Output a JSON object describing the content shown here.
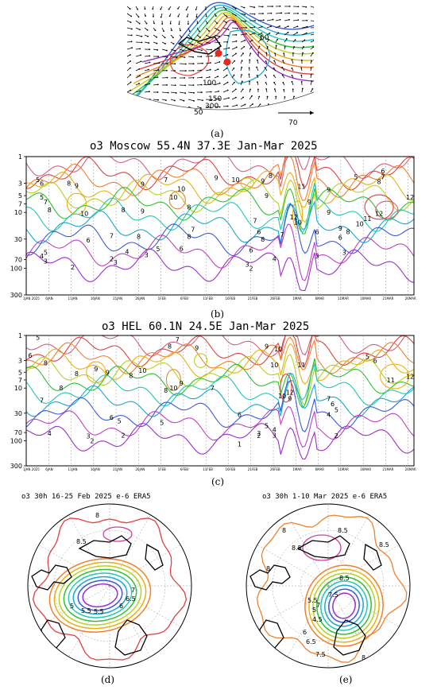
{
  "panel_a": {
    "label": "(a)",
    "contour_labels": [
      "60",
      "100",
      "150",
      "300",
      "50"
    ],
    "arrow_scale_label": "70"
  },
  "panel_b": {
    "label": "(b)",
    "title": "o3 Moscow 55.4N 37.3E Jan-Mar 2025"
  },
  "panel_c": {
    "label": "(c)",
    "title": "o3 HEL 60.1N 24.5E Jan-Mar 2025"
  },
  "panel_d": {
    "label": "(d)",
    "title": "o3 30h 16-25 Feb 2025 e-6 ERA5"
  },
  "panel_e": {
    "label": "(e)",
    "title": "o3 30h 1-10 Mar 2025 e-6 ERA5"
  },
  "colors": {
    "contours": [
      "#9b30c8",
      "#c040c0",
      "#3a5ad8",
      "#18a8d0",
      "#20c8b8",
      "#30c030",
      "#b8d020",
      "#e8b010",
      "#f08030",
      "#e04040",
      "#d06080"
    ]
  },
  "chart_data": [
    {
      "type": "heatmap",
      "title": "o3 Moscow 55.4N 37.3E Jan-Mar 2025",
      "y_ticks": [
        "1",
        "3",
        "5",
        "7",
        "10",
        "30",
        "70",
        "100",
        "300"
      ],
      "y_scale": "log-pressure",
      "x_ticks": [
        "1JAN 2025",
        "6JAN",
        "11JAN",
        "16JAN",
        "21JAN",
        "26JAN",
        "1FEB",
        "6FEB",
        "11FEB",
        "16FEB",
        "21FEB",
        "26FEB",
        "1MAR",
        "6MAR",
        "11MAR",
        "16MAR",
        "21MAR",
        "26MAR"
      ],
      "contour_labels": [
        {
          "t": "5",
          "x": 0.03,
          "p": 2.6
        },
        {
          "t": "6",
          "x": 0.04,
          "p": 3.0
        },
        {
          "t": "8",
          "x": 0.11,
          "p": 3.0
        },
        {
          "t": "9",
          "x": 0.13,
          "p": 3.3
        },
        {
          "t": "7",
          "x": 0.36,
          "p": 2.6
        },
        {
          "t": "9",
          "x": 0.3,
          "p": 3.1
        },
        {
          "t": "9",
          "x": 0.49,
          "p": 2.4
        },
        {
          "t": "10",
          "x": 0.54,
          "p": 2.6
        },
        {
          "t": "8",
          "x": 0.63,
          "p": 2.2
        },
        {
          "t": "9",
          "x": 0.61,
          "p": 2.7
        },
        {
          "t": "10",
          "x": 0.4,
          "p": 3.8
        },
        {
          "t": "10",
          "x": 0.38,
          "p": 5.3
        },
        {
          "t": "11",
          "x": 0.71,
          "p": 3.4
        },
        {
          "t": "9",
          "x": 0.78,
          "p": 3.9
        },
        {
          "t": "5",
          "x": 0.85,
          "p": 2.3
        },
        {
          "t": "6",
          "x": 0.92,
          "p": 1.8
        },
        {
          "t": "7",
          "x": 0.92,
          "p": 2.3
        },
        {
          "t": "8",
          "x": 0.91,
          "p": 2.8
        },
        {
          "t": "12",
          "x": 0.99,
          "p": 5.3
        },
        {
          "t": "5",
          "x": 0.04,
          "p": 5.3
        },
        {
          "t": "7",
          "x": 0.05,
          "p": 6.5
        },
        {
          "t": "8",
          "x": 0.06,
          "p": 9.0
        },
        {
          "t": "10",
          "x": 0.15,
          "p": 10.5
        },
        {
          "t": "8",
          "x": 0.25,
          "p": 9.0
        },
        {
          "t": "9",
          "x": 0.3,
          "p": 9.5
        },
        {
          "t": "8",
          "x": 0.42,
          "p": 8.0
        },
        {
          "t": "9",
          "x": 0.62,
          "p": 5.0
        },
        {
          "t": "9",
          "x": 0.73,
          "p": 6.5
        },
        {
          "t": "12",
          "x": 0.69,
          "p": 12.0
        },
        {
          "t": "10",
          "x": 0.7,
          "p": 15.0
        },
        {
          "t": "9",
          "x": 0.78,
          "p": 10.0
        },
        {
          "t": "12",
          "x": 0.91,
          "p": 10.5
        },
        {
          "t": "11",
          "x": 0.88,
          "p": 13.0
        },
        {
          "t": "10",
          "x": 0.86,
          "p": 16.0
        },
        {
          "t": "9",
          "x": 0.81,
          "p": 19.0
        },
        {
          "t": "8",
          "x": 0.83,
          "p": 22.0
        },
        {
          "t": "7",
          "x": 0.59,
          "p": 14.0
        },
        {
          "t": "7",
          "x": 0.43,
          "p": 20.0
        },
        {
          "t": "8",
          "x": 0.42,
          "p": 27.0
        },
        {
          "t": "6",
          "x": 0.6,
          "p": 22.0
        },
        {
          "t": "7",
          "x": 0.22,
          "p": 26.0
        },
        {
          "t": "6",
          "x": 0.16,
          "p": 31.0
        },
        {
          "t": "8",
          "x": 0.29,
          "p": 27.0
        },
        {
          "t": "8",
          "x": 0.61,
          "p": 30.0
        },
        {
          "t": "7",
          "x": 0.66,
          "p": 25.0
        },
        {
          "t": "6",
          "x": 0.75,
          "p": 22.0
        },
        {
          "t": "6",
          "x": 0.81,
          "p": 28.0
        },
        {
          "t": "5",
          "x": 0.34,
          "p": 45.0
        },
        {
          "t": "6",
          "x": 0.4,
          "p": 44.0
        },
        {
          "t": "6",
          "x": 0.58,
          "p": 47.0
        },
        {
          "t": "4",
          "x": 0.26,
          "p": 50.0
        },
        {
          "t": "3",
          "x": 0.31,
          "p": 57.0
        },
        {
          "t": "5",
          "x": 0.05,
          "p": 52.0
        },
        {
          "t": "4",
          "x": 0.04,
          "p": 60.0
        },
        {
          "t": "3",
          "x": 0.05,
          "p": 75.0
        },
        {
          "t": "2",
          "x": 0.12,
          "p": 95.0
        },
        {
          "t": "3",
          "x": 0.23,
          "p": 78.0
        },
        {
          "t": "2",
          "x": 0.22,
          "p": 68.0
        },
        {
          "t": "4",
          "x": 0.64,
          "p": 68.0
        },
        {
          "t": "3",
          "x": 0.57,
          "p": 85.0
        },
        {
          "t": "2",
          "x": 0.58,
          "p": 100.0
        },
        {
          "t": "3",
          "x": 0.75,
          "p": 60.0
        },
        {
          "t": "3",
          "x": 0.82,
          "p": 52.0
        }
      ]
    },
    {
      "type": "heatmap",
      "title": "o3 HEL 60.1N 24.5E Jan-Mar 2025",
      "y_ticks": [
        "1",
        "3",
        "5",
        "7",
        "10",
        "30",
        "70",
        "100",
        "300"
      ],
      "y_scale": "log-pressure",
      "x_ticks": [
        "1JAN 2025",
        "6JAN",
        "11JAN",
        "16JAN",
        "21JAN",
        "26JAN",
        "1FEB",
        "6FEB",
        "11FEB",
        "16FEB",
        "21FEB",
        "26FEB",
        "1MAR",
        "6MAR",
        "11MAR",
        "16MAR",
        "21MAR",
        "26MAR"
      ],
      "contour_labels": [
        {
          "t": "5",
          "x": 0.03,
          "p": 1.1
        },
        {
          "t": "7",
          "x": 0.39,
          "p": 1.2
        },
        {
          "t": "8",
          "x": 0.37,
          "p": 1.6
        },
        {
          "t": "9",
          "x": 0.44,
          "p": 1.7
        },
        {
          "t": "9",
          "x": 0.62,
          "p": 1.6
        },
        {
          "t": "10",
          "x": 0.65,
          "p": 1.8
        },
        {
          "t": "6",
          "x": 0.01,
          "p": 2.4
        },
        {
          "t": "8",
          "x": 0.05,
          "p": 3.3
        },
        {
          "t": "9",
          "x": 0.18,
          "p": 4.3
        },
        {
          "t": "9",
          "x": 0.21,
          "p": 5.0
        },
        {
          "t": "8",
          "x": 0.13,
          "p": 5.3
        },
        {
          "t": "8",
          "x": 0.27,
          "p": 5.8
        },
        {
          "t": "10",
          "x": 0.3,
          "p": 4.6
        },
        {
          "t": "10",
          "x": 0.38,
          "p": 10.0
        },
        {
          "t": "10",
          "x": 0.64,
          "p": 3.6
        },
        {
          "t": "11",
          "x": 0.71,
          "p": 3.6
        },
        {
          "t": "7",
          "x": 0.48,
          "p": 10.0
        },
        {
          "t": "8",
          "x": 0.36,
          "p": 11.0
        },
        {
          "t": "9",
          "x": 0.4,
          "p": 8.0
        },
        {
          "t": "12",
          "x": 0.68,
          "p": 12.0
        },
        {
          "t": "10",
          "x": 0.66,
          "p": 14.0
        },
        {
          "t": "9",
          "x": 0.68,
          "p": 16.0
        },
        {
          "t": "11",
          "x": 0.94,
          "p": 7.0
        },
        {
          "t": "12",
          "x": 0.99,
          "p": 6.0
        },
        {
          "t": "5",
          "x": 0.88,
          "p": 2.5
        },
        {
          "t": "6",
          "x": 0.9,
          "p": 3.0
        },
        {
          "t": "7",
          "x": 0.78,
          "p": 16.0
        },
        {
          "t": "6",
          "x": 0.79,
          "p": 20.0
        },
        {
          "t": "5",
          "x": 0.8,
          "p": 26.0
        },
        {
          "t": "4",
          "x": 0.78,
          "p": 32.0
        },
        {
          "t": "7",
          "x": 0.04,
          "p": 17.0
        },
        {
          "t": "8",
          "x": 0.09,
          "p": 10.0
        },
        {
          "t": "6",
          "x": 0.22,
          "p": 36.0
        },
        {
          "t": "5",
          "x": 0.24,
          "p": 42.0
        },
        {
          "t": "5",
          "x": 0.35,
          "p": 45.0
        },
        {
          "t": "6",
          "x": 0.55,
          "p": 32.0
        },
        {
          "t": "5",
          "x": 0.62,
          "p": 52.0
        },
        {
          "t": "4",
          "x": 0.64,
          "p": 62.0
        },
        {
          "t": "3",
          "x": 0.6,
          "p": 72.0
        },
        {
          "t": "2",
          "x": 0.6,
          "p": 80.0
        },
        {
          "t": "3",
          "x": 0.64,
          "p": 78.0
        },
        {
          "t": "4",
          "x": 0.06,
          "p": 72.0
        },
        {
          "t": "3",
          "x": 0.16,
          "p": 82.0
        },
        {
          "t": "2",
          "x": 0.25,
          "p": 78.0
        },
        {
          "t": "2",
          "x": 0.17,
          "p": 100.0
        },
        {
          "t": "1",
          "x": 0.55,
          "p": 115.0
        },
        {
          "t": "2",
          "x": 0.8,
          "p": 80.0
        }
      ]
    },
    {
      "type": "heatmap",
      "title": "o3 30h 16-25 Feb 2025 e-6 ERA5",
      "projection": "north-polar-stereographic",
      "contour_labels": [
        "8",
        "8.5",
        "8",
        "7.5",
        "8",
        "5",
        "5.5",
        "5.5",
        "6",
        "6.5",
        "7",
        "7.5",
        "8",
        "8"
      ]
    },
    {
      "type": "heatmap",
      "title": "o3 30h 1-10 Mar 2025 e-6 ERA5",
      "projection": "north-polar-stereographic",
      "contour_labels": [
        "8",
        "8.5",
        "8.5",
        "8",
        "8",
        "8.5",
        "8.5",
        "7.5",
        "7",
        "5.5",
        "5",
        "4.5",
        "6",
        "6.5",
        "7.5",
        "8"
      ]
    }
  ]
}
